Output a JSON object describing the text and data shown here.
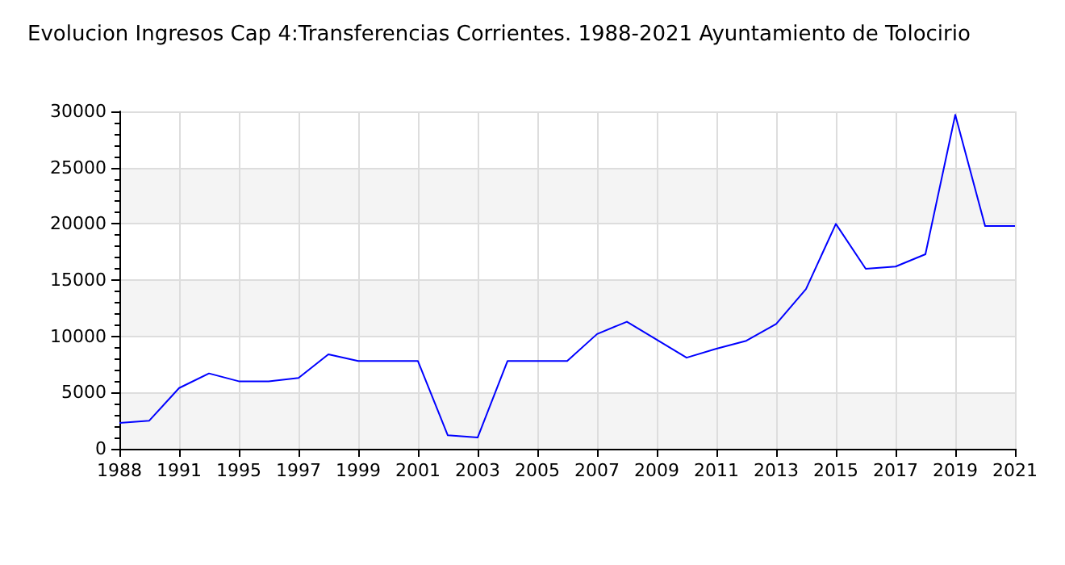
{
  "chart_data": {
    "type": "line",
    "title": "Evolucion Ingresos Cap 4:Transferencias Corrientes. 1988-2021 Ayuntamiento de Tolocirio",
    "categories": [
      "1988",
      null,
      "1991",
      null,
      "1995",
      null,
      "1997",
      null,
      "1999",
      null,
      "2001",
      null,
      "2003",
      null,
      "2005",
      null,
      "2007",
      null,
      "2009",
      null,
      "2011",
      null,
      "2013",
      null,
      "2015",
      null,
      "2017",
      null,
      "2019",
      null,
      "2021"
    ],
    "series": [
      {
        "color": "#0000ff",
        "values": [
          2300,
          2500,
          5400,
          6700,
          6000,
          6000,
          6300,
          8400,
          7800,
          7800,
          7800,
          1200,
          1000,
          7800,
          7800,
          7800,
          10200,
          11300,
          9700,
          8100,
          8900,
          9600,
          11100,
          14200,
          20000,
          16000,
          16200,
          17300,
          29700,
          19800,
          19800
        ]
      }
    ],
    "ylim": [
      0,
      30000
    ],
    "yticks": [
      0,
      5000,
      10000,
      15000,
      20000,
      25000,
      30000
    ],
    "grid": true,
    "marker": "none",
    "line_style": "solid"
  }
}
